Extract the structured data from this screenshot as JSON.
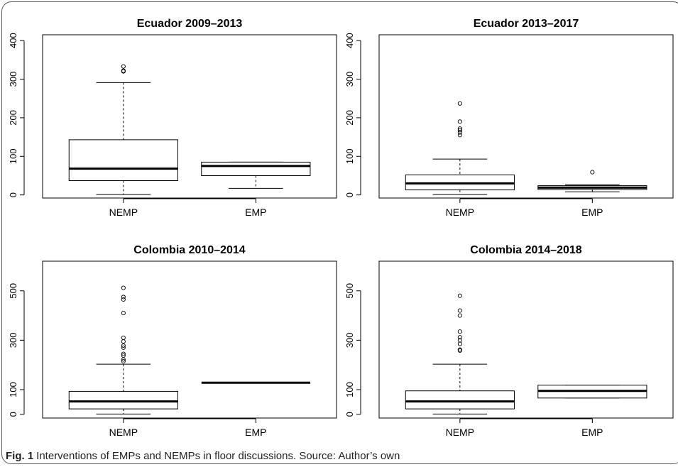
{
  "figure": {
    "caption_label": "Fig. 1",
    "caption_text": "Interventions of EMPs and NEMPs in floor discussions. Source: Author’s own"
  },
  "chart_data": [
    {
      "type": "box",
      "title": "Ecuador 2009–2013",
      "categories": [
        "NEMP",
        "EMP"
      ],
      "ylim": [
        -8,
        415
      ],
      "yticks": [
        0,
        100,
        200,
        300,
        400
      ],
      "boxes": [
        {
          "name": "NEMP",
          "whisker_low": 1,
          "q1": 37,
          "median": 68,
          "q3": 143,
          "whisker_high": 291,
          "outliers": [
            320,
            322,
            333
          ]
        },
        {
          "name": "EMP",
          "whisker_low": 17,
          "q1": 50,
          "median": 75,
          "q3": 85,
          "whisker_high": 85,
          "outliers": []
        }
      ]
    },
    {
      "type": "box",
      "title": "Ecuador 2013–2017",
      "categories": [
        "NEMP",
        "EMP"
      ],
      "ylim": [
        -8,
        415
      ],
      "yticks": [
        0,
        100,
        200,
        300,
        400
      ],
      "boxes": [
        {
          "name": "NEMP",
          "whisker_low": 1,
          "q1": 13,
          "median": 30,
          "q3": 52,
          "whisker_high": 93,
          "outliers": [
            155,
            162,
            168,
            172,
            190,
            237
          ]
        },
        {
          "name": "EMP",
          "whisker_low": 8,
          "q1": 14,
          "median": 19,
          "q3": 24,
          "whisker_high": 26,
          "outliers": [
            59
          ]
        }
      ]
    },
    {
      "type": "box",
      "title": "Colombia 2010–2014",
      "categories": [
        "NEMP",
        "EMP"
      ],
      "ylim": [
        -15,
        620
      ],
      "yticks": [
        0,
        100,
        300,
        500
      ],
      "boxes": [
        {
          "name": "NEMP",
          "whisker_low": 1,
          "q1": 22,
          "median": 52,
          "q3": 93,
          "whisker_high": 203,
          "outliers": [
            215,
            222,
            238,
            245,
            270,
            278,
            295,
            310,
            410,
            465,
            475,
            512
          ]
        },
        {
          "name": "EMP",
          "whisker_low": 128,
          "q1": 128,
          "median": 128,
          "q3": 128,
          "whisker_high": 128,
          "outliers": []
        }
      ]
    },
    {
      "type": "box",
      "title": "Colombia 2014–2018",
      "categories": [
        "NEMP",
        "EMP"
      ],
      "ylim": [
        -15,
        620
      ],
      "yticks": [
        0,
        100,
        300,
        500
      ],
      "boxes": [
        {
          "name": "NEMP",
          "whisker_low": 1,
          "q1": 22,
          "median": 52,
          "q3": 95,
          "whisker_high": 203,
          "outliers": [
            258,
            262,
            285,
            300,
            312,
            335,
            400,
            420,
            480
          ]
        },
        {
          "name": "EMP",
          "whisker_low": 66,
          "q1": 66,
          "median": 95,
          "q3": 118,
          "whisker_high": 118,
          "outliers": []
        }
      ]
    }
  ]
}
